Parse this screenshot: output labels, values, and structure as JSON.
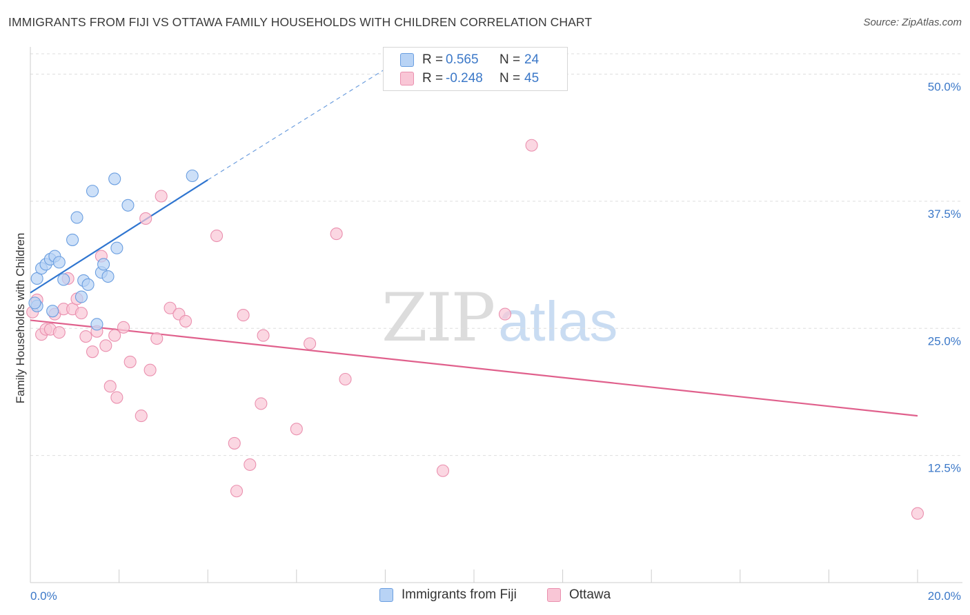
{
  "title": "IMMIGRANTS FROM FIJI VS OTTAWA FAMILY HOUSEHOLDS WITH CHILDREN CORRELATION CHART",
  "source": "Source: ZipAtlas.com",
  "watermark": {
    "zip": "ZIP",
    "atlas": "atlas"
  },
  "legend": {
    "rows": [
      {
        "r_label": "R =",
        "r_value": "0.565",
        "n_label": "N =",
        "n_value": "24"
      },
      {
        "r_label": "R =",
        "r_value": "-0.248",
        "n_label": "N =",
        "n_value": "45"
      }
    ]
  },
  "bottom_legend": {
    "series1": "Immigrants from Fiji",
    "series2": "Ottawa"
  },
  "colors": {
    "fiji_fill": "#b8d3f5",
    "fiji_stroke": "#6a9ee0",
    "fiji_line": "#2f75d0",
    "ottawa_fill": "#f9c6d6",
    "ottawa_stroke": "#ea8fae",
    "ottawa_line": "#e0608c",
    "tick_text": "#3b78c8",
    "grid": "#dddddd"
  },
  "chart_data": {
    "type": "scatter",
    "title": "IMMIGRANTS FROM FIJI VS OTTAWA FAMILY HOUSEHOLDS WITH CHILDREN CORRELATION CHART",
    "xlabel": "",
    "ylabel": "Family Households with Children",
    "xlim": [
      0,
      20
    ],
    "ylim": [
      0,
      52
    ],
    "x_tick_labels": [
      "0.0%",
      "20.0%"
    ],
    "y_ticks": [
      12.5,
      25.0,
      37.5,
      50.0
    ],
    "y_tick_labels": [
      "12.5%",
      "25.0%",
      "37.5%",
      "50.0%"
    ],
    "series": [
      {
        "name": "Immigrants from Fiji",
        "r": 0.565,
        "n": 24,
        "points": [
          [
            0.15,
            27.2
          ],
          [
            0.15,
            29.9
          ],
          [
            0.25,
            30.9
          ],
          [
            0.35,
            31.3
          ],
          [
            0.45,
            31.8
          ],
          [
            0.55,
            32.1
          ],
          [
            0.65,
            31.5
          ],
          [
            0.75,
            29.8
          ],
          [
            0.5,
            26.7
          ],
          [
            0.95,
            33.7
          ],
          [
            1.05,
            35.9
          ],
          [
            1.15,
            28.1
          ],
          [
            1.2,
            29.7
          ],
          [
            1.3,
            29.3
          ],
          [
            1.4,
            38.5
          ],
          [
            1.5,
            25.4
          ],
          [
            1.6,
            30.5
          ],
          [
            1.65,
            31.3
          ],
          [
            1.75,
            30.1
          ],
          [
            1.9,
            39.7
          ],
          [
            1.95,
            32.9
          ],
          [
            2.2,
            37.1
          ],
          [
            0.1,
            27.5
          ],
          [
            3.65,
            40.0
          ]
        ],
        "trend": {
          "x0": 0.0,
          "y0": 28.5,
          "x1": 4.0,
          "y1": 39.6,
          "dashed_to": [
            8.0,
            50.5
          ]
        }
      },
      {
        "name": "Ottawa",
        "r": -0.248,
        "n": 45,
        "points": [
          [
            0.05,
            26.6
          ],
          [
            0.15,
            27.8
          ],
          [
            0.25,
            24.4
          ],
          [
            0.35,
            24.9
          ],
          [
            0.45,
            24.9
          ],
          [
            0.55,
            26.4
          ],
          [
            0.65,
            24.6
          ],
          [
            0.75,
            26.9
          ],
          [
            0.85,
            29.9
          ],
          [
            0.95,
            26.9
          ],
          [
            1.05,
            27.9
          ],
          [
            1.15,
            26.5
          ],
          [
            1.25,
            24.2
          ],
          [
            1.4,
            22.7
          ],
          [
            1.5,
            24.7
          ],
          [
            1.6,
            32.1
          ],
          [
            1.7,
            23.3
          ],
          [
            1.8,
            19.3
          ],
          [
            1.9,
            24.3
          ],
          [
            1.95,
            18.2
          ],
          [
            2.1,
            25.1
          ],
          [
            2.25,
            21.7
          ],
          [
            2.5,
            16.4
          ],
          [
            2.6,
            35.8
          ],
          [
            2.7,
            20.9
          ],
          [
            2.85,
            24.0
          ],
          [
            2.95,
            38.0
          ],
          [
            3.15,
            27.0
          ],
          [
            3.35,
            26.4
          ],
          [
            3.5,
            25.7
          ],
          [
            4.2,
            34.1
          ],
          [
            4.6,
            13.7
          ],
          [
            4.65,
            9.0
          ],
          [
            4.8,
            26.3
          ],
          [
            4.95,
            11.6
          ],
          [
            5.2,
            17.6
          ],
          [
            5.25,
            24.3
          ],
          [
            6.0,
            15.1
          ],
          [
            6.3,
            23.5
          ],
          [
            6.9,
            34.3
          ],
          [
            7.1,
            20.0
          ],
          [
            9.3,
            11.0
          ],
          [
            10.7,
            26.4
          ],
          [
            11.3,
            43.0
          ],
          [
            20.0,
            6.8
          ]
        ],
        "trend": {
          "x0": 0.0,
          "y0": 25.8,
          "x1": 20.0,
          "y1": 16.4
        }
      }
    ]
  }
}
